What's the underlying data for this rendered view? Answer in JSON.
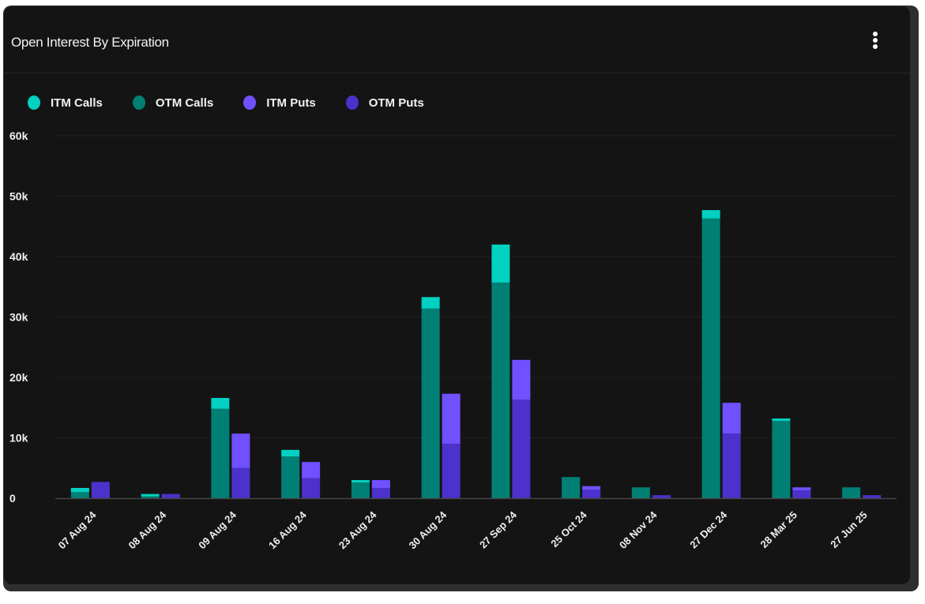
{
  "card": {
    "title": "Open Interest By Expiration",
    "menu_icon": "vertical-ellipsis-icon"
  },
  "chart_data": {
    "type": "bar",
    "stacked": true,
    "title": "Open Interest By Expiration",
    "xlabel": "",
    "ylabel": "",
    "ylim": [
      0,
      60000
    ],
    "yticks": [
      0,
      10000,
      20000,
      30000,
      40000,
      50000,
      60000
    ],
    "ytick_labels": [
      "0",
      "10k",
      "20k",
      "30k",
      "40k",
      "50k",
      "60k"
    ],
    "grid": true,
    "legend_position": "top-left",
    "categories": [
      "07 Aug 24",
      "08 Aug 24",
      "09 Aug 24",
      "16 Aug 24",
      "23 Aug 24",
      "30 Aug 24",
      "27 Sep 24",
      "25 Oct 24",
      "08 Nov 24",
      "27 Dec 24",
      "28 Mar 25",
      "27 Jun 25"
    ],
    "series": [
      {
        "name": "ITM Calls",
        "stack": "calls",
        "color": "#00d1c1",
        "values": [
          700,
          400,
          1800,
          1100,
          400,
          1900,
          6300,
          0,
          0,
          1400,
          400,
          0
        ]
      },
      {
        "name": "OTM Calls",
        "stack": "calls",
        "color": "#008075",
        "values": [
          1000,
          300,
          14800,
          6900,
          2600,
          31400,
          35700,
          3500,
          1800,
          46300,
          12800,
          1800
        ]
      },
      {
        "name": "ITM Puts",
        "stack": "puts",
        "color": "#7050ff",
        "values": [
          0,
          0,
          5700,
          2700,
          1300,
          8300,
          6600,
          600,
          0,
          5100,
          500,
          0
        ]
      },
      {
        "name": "OTM Puts",
        "stack": "puts",
        "color": "#4c31cc",
        "values": [
          2700,
          700,
          5000,
          3300,
          1700,
          9000,
          16300,
          1400,
          500,
          10700,
          1300,
          500
        ]
      }
    ]
  }
}
